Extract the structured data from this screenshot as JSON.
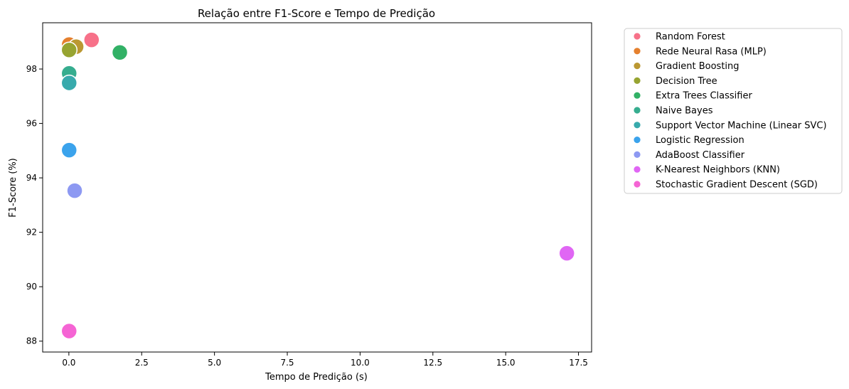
{
  "chart_data": {
    "type": "scatter",
    "title": "Relação entre F1-Score e Tempo de Predição",
    "xlabel": "Tempo de Predição (s)",
    "ylabel": "F1-Score (%)",
    "xlim": [
      -0.9,
      17.95
    ],
    "ylim": [
      87.6,
      99.7
    ],
    "xticks": [
      0.0,
      2.5,
      5.0,
      7.5,
      10.0,
      12.5,
      15.0,
      17.5
    ],
    "xtick_labels": [
      "0.0",
      "2.5",
      "5.0",
      "7.5",
      "10.0",
      "12.5",
      "15.0",
      "17.5"
    ],
    "yticks": [
      88,
      90,
      92,
      94,
      96,
      98
    ],
    "ytick_labels": [
      "88",
      "90",
      "92",
      "94",
      "96",
      "98"
    ],
    "grid": false,
    "legend_position": "outside-right",
    "series": [
      {
        "name": "Random Forest",
        "color": "#f77189",
        "x": 0.78,
        "y": 99.07
      },
      {
        "name": "Rede Neural Rasa (MLP)",
        "color": "#e5802e",
        "x": 0.01,
        "y": 98.9
      },
      {
        "name": "Gradient Boosting",
        "color": "#bb9832",
        "x": 0.25,
        "y": 98.82
      },
      {
        "name": "Decision Tree",
        "color": "#97a431",
        "x": 0.01,
        "y": 98.7
      },
      {
        "name": "Extra Trees Classifier",
        "color": "#32b166",
        "x": 1.75,
        "y": 98.61
      },
      {
        "name": "Naive Bayes",
        "color": "#36ad8f",
        "x": 0.01,
        "y": 97.84
      },
      {
        "name": "Support Vector Machine (Linear SVC)",
        "color": "#38aaac",
        "x": 0.01,
        "y": 97.49
      },
      {
        "name": "Logistic Regression",
        "color": "#3ba3ec",
        "x": 0.01,
        "y": 95.02
      },
      {
        "name": "AdaBoost Classifier",
        "color": "#8d99f2",
        "x": 0.2,
        "y": 93.53
      },
      {
        "name": "K-Nearest Neighbors (KNN)",
        "color": "#e066f4",
        "x": 17.1,
        "y": 91.23
      },
      {
        "name": "Stochastic Gradient Descent (SGD)",
        "color": "#f564d4",
        "x": 0.01,
        "y": 88.37
      }
    ]
  }
}
